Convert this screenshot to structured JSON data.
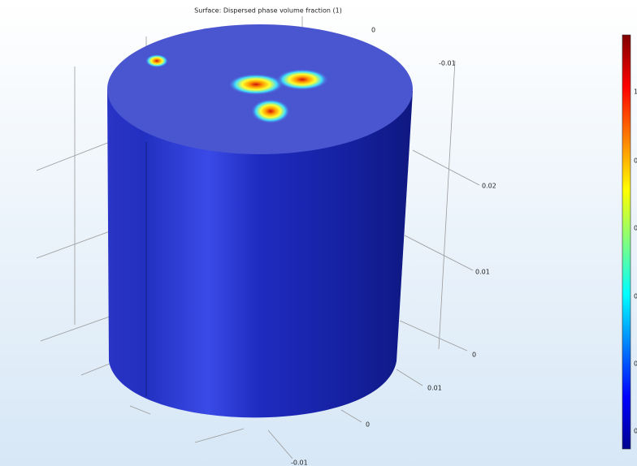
{
  "title": "Surface: Dispersed phase volume fraction (1)",
  "axis_labels": [
    "0",
    "-0.01",
    "0.02",
    "0.01",
    "0",
    "0.01",
    "0",
    "-0.01"
  ],
  "colorbar_labels": [
    "1",
    "0",
    "0",
    "0",
    "0",
    "0"
  ]
}
